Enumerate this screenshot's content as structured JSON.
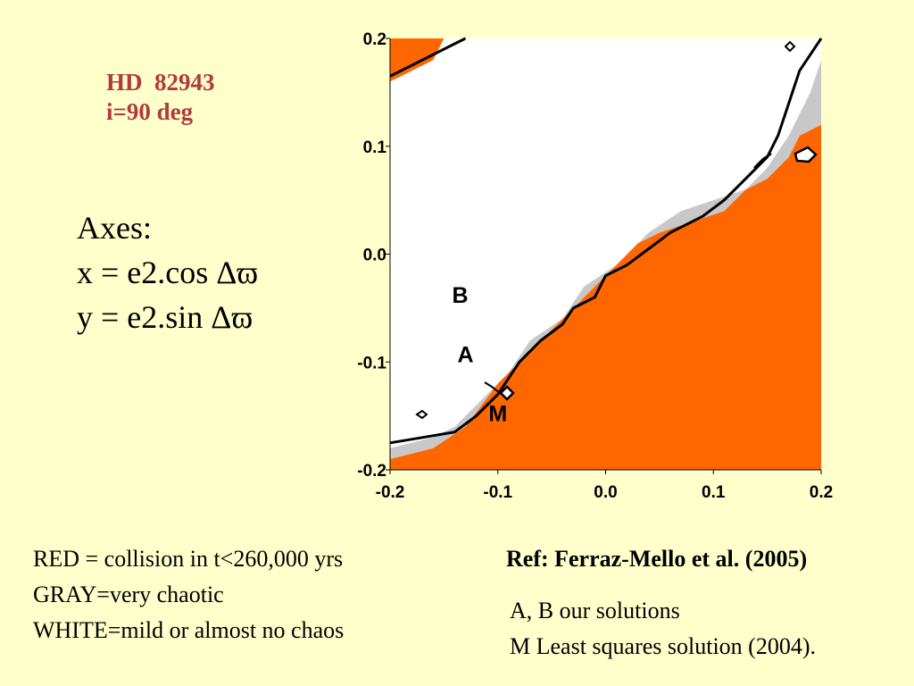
{
  "header": {
    "star": "HD  82943",
    "inclination": "i=90 deg"
  },
  "axes_text": {
    "heading": "Axes:",
    "x_def": "x = e2.cos Δϖ",
    "y_def": "y = e2.sin Δϖ"
  },
  "legend": {
    "red": "RED = collision in t<260,000 yrs",
    "gray": "GRAY=very chaotic",
    "white": "WHITE=mild or almost no chaos"
  },
  "reference": "Ref: Ferraz-Mello et al. (2005)",
  "solutions": {
    "ab": "A, B our solutions",
    "m": "M Least squares solution (2004)."
  },
  "colors": {
    "background": "#FFFFCC",
    "collision": "#FF6600",
    "chaotic": "#C8C8C8",
    "mild": "#FFFFFF",
    "title": "#B33A3A"
  },
  "chart_data": {
    "type": "heatmap",
    "title": "",
    "xlabel": "",
    "ylabel": "",
    "xlim": [
      -0.2,
      0.2
    ],
    "ylim": [
      -0.2,
      0.2
    ],
    "x_ticks": [
      -0.2,
      -0.1,
      0.0,
      0.1,
      0.2
    ],
    "y_ticks": [
      -0.2,
      -0.1,
      0.0,
      0.1,
      0.2
    ],
    "x_tick_labels": [
      "-0.2",
      "-0.1",
      "0.0",
      "0.1",
      "0.2"
    ],
    "y_tick_labels": [
      "-0.2",
      "-0.1",
      "0.0",
      "0.1",
      "0.2"
    ],
    "regions": [
      {
        "name": "collision",
        "color": "#FF6600",
        "polygons": [
          [
            [
              -0.2,
              -0.2
            ],
            [
              0.2,
              -0.2
            ],
            [
              0.2,
              0.12
            ],
            [
              0.18,
              0.11
            ],
            [
              0.17,
              0.09
            ],
            [
              0.15,
              0.07
            ],
            [
              0.13,
              0.06
            ],
            [
              0.11,
              0.04
            ],
            [
              0.08,
              0.03
            ],
            [
              0.05,
              0.02
            ],
            [
              0.03,
              0.01
            ],
            [
              0.01,
              -0.01
            ],
            [
              -0.01,
              -0.03
            ],
            [
              -0.04,
              -0.06
            ],
            [
              -0.07,
              -0.09
            ],
            [
              -0.1,
              -0.12
            ],
            [
              -0.13,
              -0.16
            ],
            [
              -0.16,
              -0.18
            ],
            [
              -0.2,
              -0.19
            ]
          ],
          [
            [
              -0.2,
              0.16
            ],
            [
              -0.2,
              0.2
            ],
            [
              -0.15,
              0.2
            ],
            [
              -0.16,
              0.18
            ],
            [
              -0.18,
              0.17
            ]
          ]
        ]
      },
      {
        "name": "chaotic",
        "color": "#C8C8C8",
        "polygons": [
          [
            [
              -0.2,
              -0.2
            ],
            [
              -0.2,
              -0.18
            ],
            [
              -0.16,
              -0.17
            ],
            [
              -0.14,
              -0.16
            ],
            [
              -0.12,
              -0.14
            ],
            [
              -0.09,
              -0.11
            ],
            [
              -0.07,
              -0.08
            ],
            [
              -0.04,
              -0.06
            ],
            [
              -0.02,
              -0.03
            ],
            [
              0.01,
              -0.01
            ],
            [
              0.04,
              0.02
            ],
            [
              0.07,
              0.04
            ],
            [
              0.1,
              0.05
            ],
            [
              0.13,
              0.06
            ],
            [
              0.15,
              0.08
            ],
            [
              0.17,
              0.11
            ],
            [
              0.19,
              0.15
            ],
            [
              0.2,
              0.18
            ],
            [
              0.2,
              0.12
            ],
            [
              0.18,
              0.11
            ],
            [
              0.17,
              0.09
            ],
            [
              0.15,
              0.07
            ],
            [
              0.13,
              0.06
            ],
            [
              0.11,
              0.04
            ],
            [
              0.08,
              0.03
            ],
            [
              0.05,
              0.02
            ],
            [
              0.03,
              0.01
            ],
            [
              0.01,
              -0.01
            ],
            [
              -0.01,
              -0.03
            ],
            [
              -0.04,
              -0.06
            ],
            [
              -0.07,
              -0.09
            ],
            [
              -0.1,
              -0.12
            ],
            [
              -0.13,
              -0.16
            ],
            [
              -0.16,
              -0.18
            ],
            [
              -0.2,
              -0.19
            ]
          ]
        ]
      }
    ],
    "contours": [
      [
        [
          -0.2,
          -0.175
        ],
        [
          -0.17,
          -0.17
        ],
        [
          -0.14,
          -0.165
        ],
        [
          -0.12,
          -0.15
        ],
        [
          -0.1,
          -0.13
        ],
        [
          -0.08,
          -0.1
        ],
        [
          -0.06,
          -0.08
        ],
        [
          -0.04,
          -0.065
        ],
        [
          -0.03,
          -0.05
        ],
        [
          -0.01,
          -0.04
        ],
        [
          0.0,
          -0.02
        ],
        [
          0.02,
          -0.01
        ],
        [
          0.04,
          0.005
        ],
        [
          0.06,
          0.02
        ],
        [
          0.09,
          0.035
        ],
        [
          0.11,
          0.05
        ],
        [
          0.13,
          0.07
        ],
        [
          0.15,
          0.09
        ],
        [
          0.16,
          0.11
        ],
        [
          0.17,
          0.14
        ],
        [
          0.18,
          0.17
        ],
        [
          0.2,
          0.2
        ]
      ],
      [
        [
          -0.2,
          0.165
        ],
        [
          -0.18,
          0.175
        ],
        [
          -0.16,
          0.185
        ],
        [
          -0.14,
          0.195
        ],
        [
          -0.13,
          0.2
        ]
      ]
    ],
    "markers": [
      {
        "label": "B",
        "x": -0.135,
        "y": -0.045
      },
      {
        "label": "A",
        "x": -0.13,
        "y": -0.1
      },
      {
        "label": "M",
        "x": -0.1,
        "y": -0.155
      }
    ]
  }
}
